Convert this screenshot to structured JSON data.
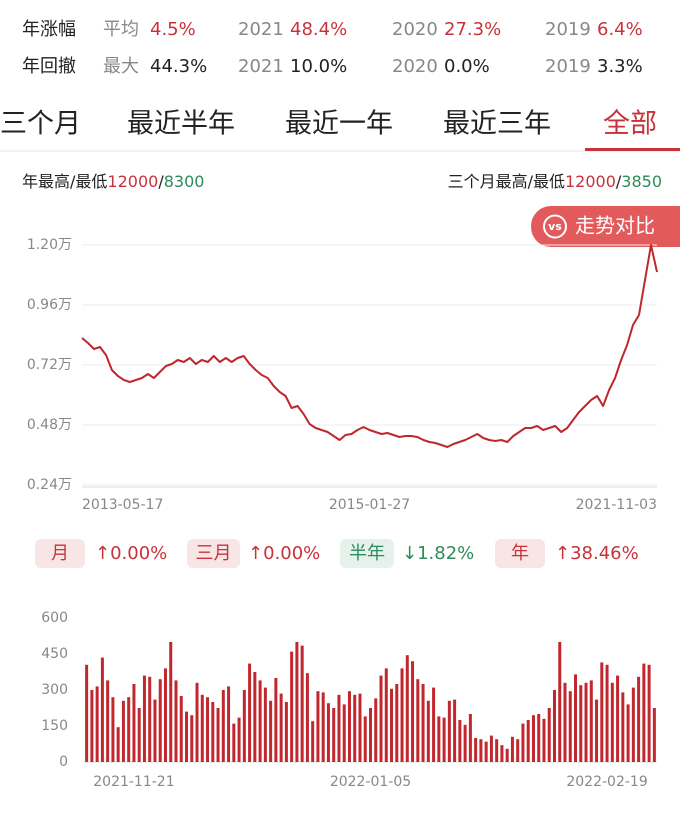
{
  "stats": {
    "rows": [
      [
        "年涨幅",
        "平均",
        "4.5%",
        "2021",
        "48.4%",
        "2020",
        "27.3%",
        "2019",
        "6.4%"
      ],
      [
        "年回撤",
        "最大",
        "44.3%",
        "2021",
        "10.0%",
        "2020",
        "0.0%",
        "2019",
        "3.3%"
      ]
    ]
  },
  "tabs": {
    "items": [
      "三个月",
      "最近半年",
      "最近一年",
      "最近三年",
      "全部"
    ],
    "active": 4
  },
  "year_range": {
    "label": "年最高/最低",
    "high": "12000",
    "separator": "/",
    "low": "8300"
  },
  "quarter_range": {
    "label": "三个月最高/最低",
    "high": "12000",
    "separator": "/",
    "low": "3850"
  },
  "compare_button": {
    "icon": "vs",
    "label": "走势对比"
  },
  "changes": [
    {
      "period": "月",
      "change": "↑0.00%",
      "color": "#c8323a"
    },
    {
      "period": "三月",
      "change": "↑0.00%",
      "color": "#c8323a"
    },
    {
      "period": "半年",
      "change": "↓1.82%",
      "color": "#2e8b5a"
    },
    {
      "period": "年",
      "change": "↑38.46%",
      "color": "#c8323a"
    }
  ],
  "chart_data": [
    {
      "type": "line",
      "color": "#c0272d",
      "grid": true,
      "x": [
        "2013-05-17",
        null,
        null,
        null,
        null,
        null,
        null,
        null,
        null,
        null,
        null,
        null,
        null,
        null,
        null,
        null,
        null,
        null,
        null,
        null,
        null,
        null,
        null,
        null,
        null,
        null,
        null,
        null,
        null,
        null,
        null,
        null,
        null,
        null,
        null,
        null,
        null,
        null,
        null,
        null,
        null,
        null,
        null,
        null,
        null,
        null,
        null,
        null,
        "2015-01-27",
        null,
        null,
        null,
        null,
        null,
        null,
        null,
        null,
        null,
        null,
        null,
        null,
        null,
        null,
        null,
        null,
        null,
        null,
        null,
        null,
        null,
        null,
        null,
        null,
        null,
        null,
        null,
        null,
        null,
        null,
        null,
        null,
        null,
        null,
        null,
        null,
        null,
        null,
        null,
        null,
        null,
        null,
        null,
        null,
        null,
        null,
        null,
        "2021-11-03"
      ],
      "values": [
        8280,
        8080,
        7840,
        7920,
        7600,
        7000,
        6760,
        6600,
        6520,
        6600,
        6680,
        6840,
        6680,
        6920,
        7160,
        7240,
        7400,
        7320,
        7480,
        7240,
        7400,
        7320,
        7560,
        7320,
        7480,
        7320,
        7480,
        7560,
        7240,
        7000,
        6800,
        6680,
        6360,
        6120,
        5960,
        5480,
        5560,
        5240,
        4840,
        4680,
        4600,
        4520,
        4360,
        4200,
        4400,
        4440,
        4600,
        4720,
        4600,
        4520,
        4440,
        4480,
        4400,
        4320,
        4360,
        4360,
        4320,
        4200,
        4120,
        4080,
        4000,
        3920,
        4040,
        4120,
        4200,
        4320,
        4440,
        4280,
        4200,
        4160,
        4200,
        4120,
        4360,
        4520,
        4680,
        4680,
        4760,
        4600,
        4680,
        4760,
        4520,
        4680,
        5000,
        5320,
        5560,
        5800,
        5960,
        5560,
        6200,
        6680,
        7400,
        8000,
        8800,
        9200,
        10600,
        12000,
        10920
      ],
      "ylim": [
        2400,
        13200
      ],
      "yticks": [
        {
          "value": 2400,
          "label": "0.24万"
        },
        {
          "value": 4800,
          "label": "0.48万"
        },
        {
          "value": 7200,
          "label": "0.72万"
        },
        {
          "value": 9600,
          "label": "0.96万"
        },
        {
          "value": 12000,
          "label": "1.20万"
        }
      ]
    },
    {
      "type": "bar",
      "color": "#c1272d",
      "grid": false,
      "categories": [
        null,
        null,
        null,
        null,
        null,
        null,
        null,
        null,
        null,
        "2021-11-21",
        null,
        null,
        null,
        null,
        null,
        null,
        null,
        null,
        null,
        null,
        null,
        null,
        null,
        null,
        null,
        null,
        null,
        null,
        null,
        null,
        null,
        null,
        null,
        null,
        null,
        null,
        null,
        null,
        null,
        null,
        null,
        null,
        null,
        null,
        null,
        null,
        null,
        null,
        null,
        null,
        null,
        null,
        null,
        null,
        "2022-01-05",
        null,
        null,
        null,
        null,
        null,
        null,
        null,
        null,
        null,
        null,
        null,
        null,
        null,
        null,
        null,
        null,
        null,
        null,
        null,
        null,
        null,
        null,
        null,
        null,
        null,
        null,
        null,
        null,
        null,
        null,
        null,
        null,
        null,
        null,
        null,
        null,
        null,
        null,
        null,
        null,
        null,
        null,
        null,
        null,
        "2022-02-19",
        null,
        null,
        null,
        null,
        null,
        null,
        null,
        null,
        null
      ],
      "values": [
        405,
        300,
        315,
        435,
        340,
        270,
        145,
        255,
        270,
        325,
        225,
        360,
        355,
        260,
        345,
        390,
        500,
        340,
        275,
        210,
        195,
        330,
        280,
        270,
        250,
        225,
        300,
        315,
        160,
        185,
        300,
        410,
        375,
        340,
        310,
        255,
        350,
        285,
        250,
        460,
        500,
        485,
        370,
        170,
        295,
        290,
        245,
        225,
        280,
        240,
        295,
        280,
        285,
        190,
        225,
        265,
        360,
        390,
        305,
        325,
        390,
        445,
        420,
        345,
        325,
        255,
        310,
        190,
        185,
        255,
        260,
        175,
        155,
        200,
        100,
        95,
        85,
        110,
        95,
        70,
        55,
        105,
        95,
        160,
        175,
        195,
        200,
        180,
        225,
        300,
        500,
        330,
        295,
        365,
        320,
        330,
        340,
        260,
        415,
        405,
        330,
        360,
        290,
        240,
        310,
        355,
        410,
        405,
        225
      ],
      "ylim": [
        0,
        600
      ],
      "yticks": [
        0,
        150,
        300,
        450,
        600
      ]
    }
  ]
}
